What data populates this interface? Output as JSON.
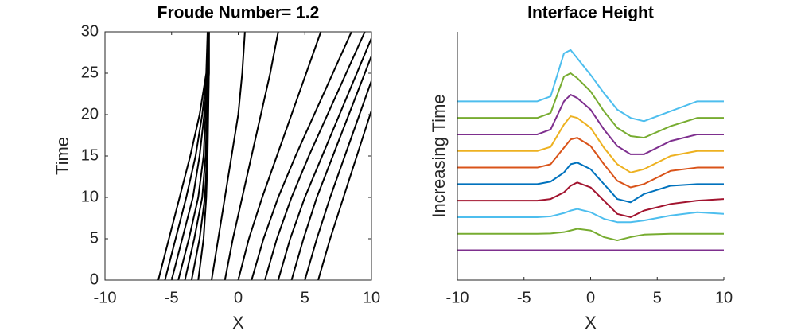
{
  "chart_data": [
    {
      "type": "line",
      "title": "Froude Number= 1.2",
      "xlabel": "X",
      "ylabel": "Time",
      "xlim": [
        -10,
        10
      ],
      "xticks": [
        -10,
        -5,
        0,
        5,
        10
      ],
      "ylim": [
        0,
        30
      ],
      "yticks": [
        0,
        5,
        10,
        15,
        20,
        25,
        30
      ],
      "box": true,
      "color": "#000000",
      "y": [
        0,
        5,
        10,
        15,
        20,
        25,
        30
      ],
      "series": [
        {
          "x": [
            -6,
            -5.2,
            -4.4,
            -3.6,
            -2.9,
            -2.4,
            -2.3
          ]
        },
        {
          "x": [
            -5.5,
            -4.7,
            -3.9,
            -3.2,
            -2.7,
            -2.35,
            -2.25
          ]
        },
        {
          "x": [
            -5,
            -4.2,
            -3.4,
            -2.9,
            -2.55,
            -2.3,
            -2.2
          ]
        },
        {
          "x": [
            -4.5,
            -3.7,
            -3.0,
            -2.6,
            -2.45,
            -2.25,
            -2.2
          ]
        },
        {
          "x": [
            -4,
            -3.3,
            -2.7,
            -2.45,
            -2.35,
            -2.2,
            -2.2
          ]
        },
        {
          "x": [
            -3.5,
            -2.9,
            -2.5,
            -2.35,
            -2.3,
            -2.2,
            -2.2
          ]
        },
        {
          "x": [
            -3,
            -2.6,
            -2.4,
            -2.3,
            -2.25,
            -2.2,
            -2.2
          ]
        },
        {
          "x": [
            -2,
            -1.5,
            -1.0,
            -0.5,
            0.0,
            0.3,
            0.5
          ]
        },
        {
          "x": [
            -1,
            -0.4,
            0.3,
            1.0,
            1.7,
            2.4,
            3.0
          ]
        },
        {
          "x": [
            0,
            0.8,
            1.8,
            2.9,
            4.0,
            5.1,
            6.2
          ]
        },
        {
          "x": [
            1,
            1.9,
            3.0,
            4.3,
            5.7,
            7.1,
            8.5
          ]
        },
        {
          "x": [
            2,
            2.9,
            4.0,
            5.3,
            6.7,
            8.1,
            9.5
          ]
        },
        {
          "x": [
            3,
            3.9,
            5.0,
            6.3,
            7.6,
            8.9,
            10.2
          ]
        },
        {
          "x": [
            4,
            4.9,
            5.9,
            7.1,
            8.3,
            9.5,
            10.7
          ]
        },
        {
          "x": [
            5,
            5.9,
            6.9,
            8.0,
            9.1,
            10.2,
            11.3
          ]
        },
        {
          "x": [
            6,
            6.9,
            7.9,
            8.9,
            9.9,
            10.9,
            11.9
          ]
        }
      ]
    },
    {
      "type": "line",
      "title": "Interface Height",
      "xlabel": "X",
      "ylabel": "Increasing Time",
      "xlim": [
        -10,
        10
      ],
      "xticks": [
        -10,
        -5,
        0,
        5,
        10
      ],
      "ylim": [
        0,
        15
      ],
      "box": false,
      "x": [
        -10,
        -6,
        -4,
        -3,
        -2,
        -1.5,
        -1,
        0,
        1,
        2,
        3,
        4,
        6,
        8,
        10
      ],
      "series": [
        {
          "color": "#7E2F8E",
          "values": [
            1.8,
            1.8,
            1.8,
            1.8,
            1.8,
            1.8,
            1.8,
            1.8,
            1.8,
            1.8,
            1.8,
            1.8,
            1.8,
            1.8,
            1.8
          ]
        },
        {
          "color": "#77AC30",
          "values": [
            2.8,
            2.8,
            2.8,
            2.82,
            2.9,
            3.0,
            3.1,
            3.0,
            2.6,
            2.4,
            2.6,
            2.75,
            2.8,
            2.8,
            2.8
          ]
        },
        {
          "color": "#4DBEEE",
          "values": [
            3.8,
            3.8,
            3.8,
            3.85,
            4.05,
            4.2,
            4.3,
            4.1,
            3.7,
            3.5,
            3.5,
            3.6,
            3.9,
            4.1,
            4.0
          ]
        },
        {
          "color": "#A2142F",
          "values": [
            4.8,
            4.8,
            4.8,
            4.9,
            5.3,
            5.7,
            5.9,
            5.6,
            4.8,
            4.0,
            3.8,
            4.2,
            4.6,
            4.8,
            4.9
          ]
        },
        {
          "color": "#0072BD",
          "values": [
            5.8,
            5.8,
            5.8,
            5.95,
            6.5,
            7.0,
            7.1,
            6.7,
            5.8,
            4.9,
            4.7,
            5.2,
            5.7,
            5.8,
            5.8
          ]
        },
        {
          "color": "#D95319",
          "values": [
            6.8,
            6.8,
            6.8,
            7.0,
            8.0,
            8.5,
            8.6,
            8.1,
            7.0,
            6.0,
            5.6,
            5.8,
            6.6,
            6.8,
            6.8
          ]
        },
        {
          "color": "#EDB120",
          "values": [
            7.8,
            7.8,
            7.8,
            8.05,
            9.4,
            9.9,
            9.8,
            9.2,
            8.0,
            7.0,
            6.5,
            6.7,
            7.5,
            7.8,
            7.8
          ]
        },
        {
          "color": "#7E2F8E",
          "values": [
            8.8,
            8.8,
            8.8,
            9.1,
            10.8,
            11.2,
            11.0,
            10.3,
            9.1,
            8.1,
            7.6,
            7.6,
            8.4,
            8.8,
            8.8
          ]
        },
        {
          "color": "#77AC30",
          "values": [
            9.8,
            9.8,
            9.8,
            10.1,
            12.3,
            12.5,
            12.2,
            11.4,
            10.2,
            9.2,
            8.7,
            8.6,
            9.3,
            9.8,
            9.8
          ]
        },
        {
          "color": "#4DBEEE",
          "values": [
            10.8,
            10.8,
            10.8,
            11.1,
            13.7,
            13.9,
            13.4,
            12.4,
            11.3,
            10.3,
            9.8,
            9.6,
            10.2,
            10.8,
            10.8
          ]
        }
      ]
    }
  ]
}
